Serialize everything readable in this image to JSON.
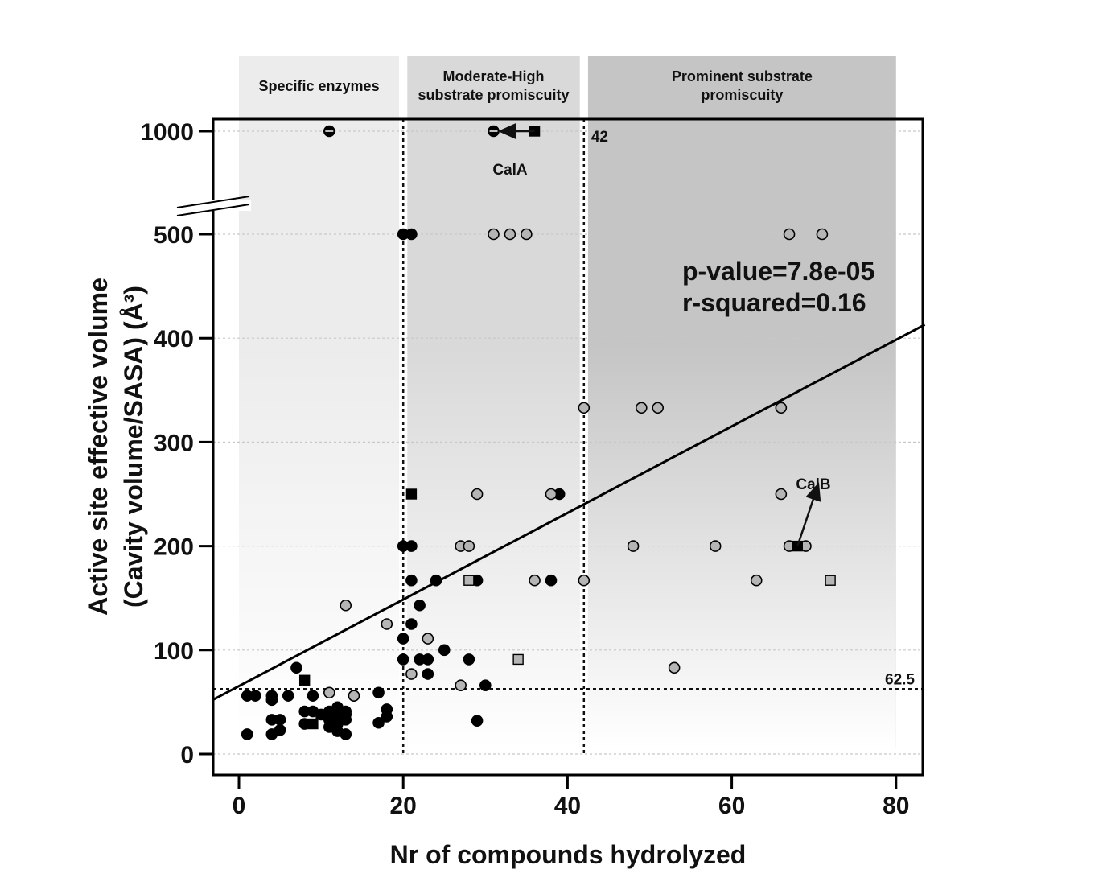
{
  "chart_data": {
    "type": "scatter",
    "title": "",
    "xlabel": "Nr of compounds hydrolyzed",
    "ylabel_line1": "Active site effective volume",
    "ylabel_line2": "(Cavity volume/SASA) (Å³)",
    "xlim": [
      -3.2,
      83.5
    ],
    "ylim": [
      -20,
      1012
    ],
    "y_axis_break": "between 500 and 1000 (1000 drawn at one tick step above 500)",
    "x_ticks": [
      "0",
      "20",
      "40",
      "60",
      "80"
    ],
    "y_ticks": [
      "0",
      "100",
      "200",
      "300",
      "400",
      "500",
      "1000"
    ],
    "grid": "horizontal dotted lines at y ticks",
    "regions": [
      {
        "label_lines": [
          "Specific enzymes"
        ],
        "x_range": [
          0,
          19.5
        ],
        "shade": "#ececec"
      },
      {
        "label_lines": [
          "Moderate-High",
          "substrate promiscuity"
        ],
        "x_range": [
          20.5,
          41.5
        ],
        "shade": "#d9d9d9"
      },
      {
        "label_lines": [
          "Prominent substrate",
          "promiscuity"
        ],
        "x_range": [
          42.5,
          80
        ],
        "shade": "#c5c5c5"
      }
    ],
    "thresholds": {
      "x": [
        20,
        42
      ],
      "y": 62.5,
      "x_label": "42",
      "y_label": "62.5"
    },
    "regression": {
      "x": [
        -3.2,
        83.5
      ],
      "y": [
        52,
        413
      ]
    },
    "stats": {
      "p_value": "p-value=7.8e-05",
      "r_squared": "r-squared=0.16"
    },
    "annotations": [
      {
        "text": "CalA",
        "x": 33,
        "y": 950,
        "arrow_from": [
          36,
          1000
        ],
        "arrow_to": [
          32.5,
          965
        ]
      },
      {
        "text": "CalB",
        "x": 70.5,
        "y": 262,
        "arrow_from": [
          68,
          200
        ],
        "arrow_to": [
          70.3,
          254
        ]
      }
    ],
    "series": [
      {
        "marker": "circle",
        "fill": "black",
        "points": [
          [
            1,
            19
          ],
          [
            1,
            56
          ],
          [
            2,
            56
          ],
          [
            4,
            19
          ],
          [
            4,
            33
          ],
          [
            4,
            52
          ],
          [
            4,
            56
          ],
          [
            5,
            23
          ],
          [
            5,
            33
          ],
          [
            6,
            56
          ],
          [
            7,
            83
          ],
          [
            8,
            29
          ],
          [
            8,
            41
          ],
          [
            9,
            41
          ],
          [
            9,
            56
          ],
          [
            10,
            38
          ],
          [
            11,
            26
          ],
          [
            11,
            41
          ],
          [
            11,
            33
          ],
          [
            12,
            22
          ],
          [
            12,
            45
          ],
          [
            12,
            38
          ],
          [
            12,
            29
          ],
          [
            13,
            19
          ],
          [
            13,
            33
          ],
          [
            13,
            41
          ],
          [
            13,
            38
          ],
          [
            14,
            56
          ],
          [
            17,
            30
          ],
          [
            17,
            59
          ],
          [
            18,
            36
          ],
          [
            18,
            43
          ],
          [
            20,
            91
          ],
          [
            20,
            111
          ],
          [
            20,
            200
          ],
          [
            20,
            500
          ],
          [
            21,
            125
          ],
          [
            21,
            167
          ],
          [
            21,
            200
          ],
          [
            21,
            500
          ],
          [
            22,
            91
          ],
          [
            22,
            143
          ],
          [
            23,
            91
          ],
          [
            23,
            77
          ],
          [
            24,
            167
          ],
          [
            25,
            100
          ],
          [
            28,
            91
          ],
          [
            29,
            167
          ],
          [
            29,
            32
          ],
          [
            30,
            66
          ],
          [
            38,
            167
          ],
          [
            39,
            250
          ]
        ]
      },
      {
        "marker": "circle",
        "fill": "black-halfline",
        "points": [
          [
            11,
            1000
          ],
          [
            31,
            1000
          ]
        ]
      },
      {
        "marker": "circle",
        "fill": "gray",
        "points": [
          [
            11,
            59
          ],
          [
            13,
            143
          ],
          [
            14,
            56
          ],
          [
            18,
            125
          ],
          [
            21,
            77
          ],
          [
            23,
            111
          ],
          [
            27,
            66
          ],
          [
            27,
            200
          ],
          [
            28,
            200
          ],
          [
            29,
            250
          ],
          [
            31,
            500
          ],
          [
            33,
            500
          ],
          [
            35,
            500
          ],
          [
            36,
            167
          ],
          [
            38,
            250
          ],
          [
            42,
            167
          ],
          [
            42,
            333
          ],
          [
            48,
            200
          ],
          [
            49,
            333
          ],
          [
            51,
            333
          ],
          [
            53,
            83
          ],
          [
            58,
            200
          ],
          [
            63,
            167
          ],
          [
            66,
            333
          ],
          [
            66,
            250
          ],
          [
            67,
            200
          ],
          [
            67,
            500
          ],
          [
            69,
            200
          ],
          [
            71,
            500
          ]
        ]
      },
      {
        "marker": "square",
        "fill": "black",
        "points": [
          [
            8,
            71
          ],
          [
            9,
            29
          ],
          [
            10,
            38
          ],
          [
            21,
            250
          ],
          [
            36,
            1000
          ],
          [
            68,
            200
          ]
        ]
      },
      {
        "marker": "square",
        "fill": "gray",
        "points": [
          [
            28,
            167
          ],
          [
            34,
            91
          ],
          [
            72,
            167
          ]
        ]
      }
    ]
  },
  "colors": {
    "gray_marker": "#b5b5b5",
    "black_marker": "#000000",
    "grid": "#c8c8c8"
  }
}
